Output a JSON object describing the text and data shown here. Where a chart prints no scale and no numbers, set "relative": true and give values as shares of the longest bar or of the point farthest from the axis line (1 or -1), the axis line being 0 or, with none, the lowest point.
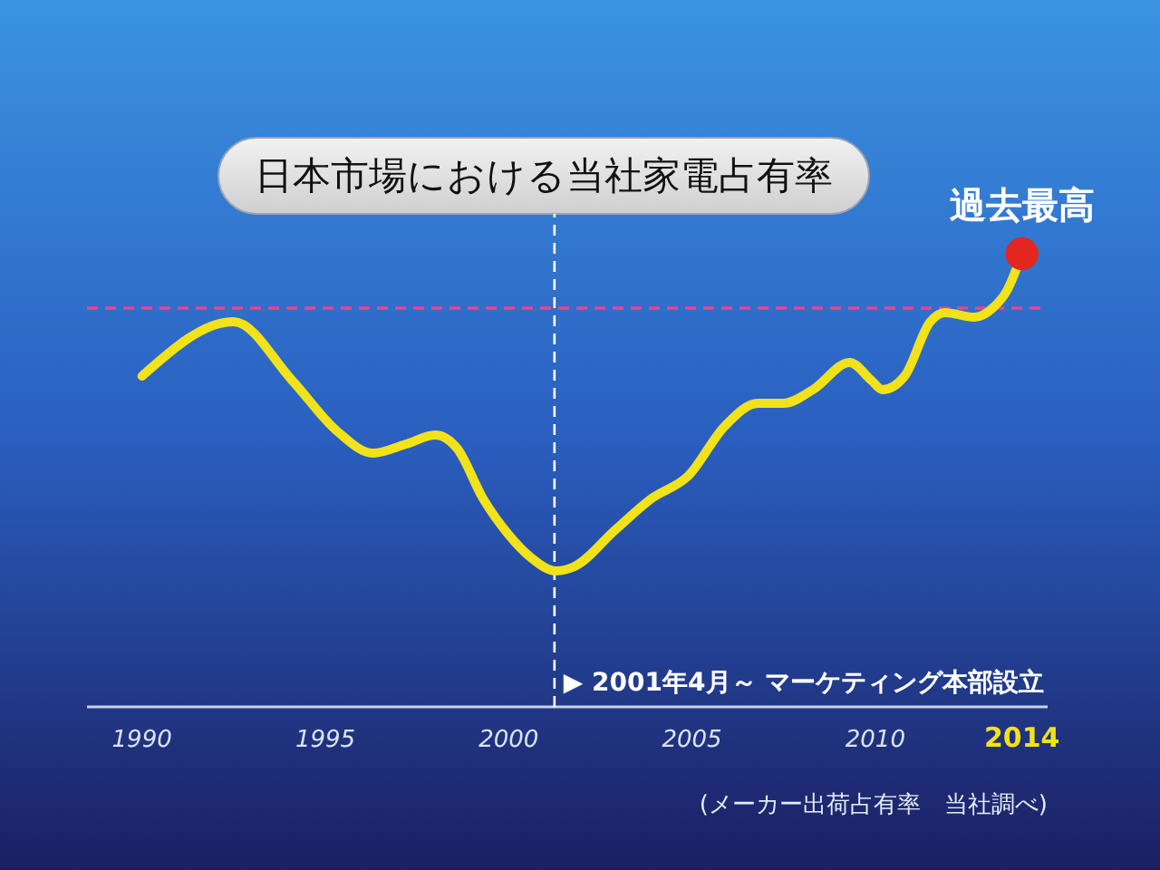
{
  "chart_data": {
    "type": "line",
    "title": "日本市場における当社家電占有率",
    "relative": true,
    "xlim": [
      1988.5,
      2014.7
    ],
    "xticks": [
      1990,
      1995,
      2000,
      2005,
      2010,
      2014
    ],
    "series": [
      {
        "color": "#f2e21a",
        "x": [
          1990,
          1992.5,
          1994.1,
          1995.3,
          1996.3,
          1997.2,
          1998,
          1998.6,
          1999.3,
          2000,
          2000.6,
          2001.3,
          2001.8,
          2002.9,
          2003.9,
          2004.9,
          2005.9,
          2006.8,
          2007.5,
          2008.3,
          2009.3,
          2009.9,
          2010.2,
          2010.8,
          2011.5,
          2011.9,
          2012.7,
          2013.2,
          2013.6,
          2014
        ],
        "values": [
          0.73,
          0.85,
          0.72,
          0.61,
          0.56,
          0.58,
          0.6,
          0.57,
          0.46,
          0.38,
          0.33,
          0.3,
          0.31,
          0.39,
          0.46,
          0.51,
          0.62,
          0.67,
          0.67,
          0.7,
          0.76,
          0.72,
          0.7,
          0.73,
          0.85,
          0.87,
          0.86,
          0.88,
          0.92,
          1
        ]
      },
      {
        "type": "scatter",
        "color": "#e3261f",
        "marker": "circle",
        "x": [
          2014
        ],
        "values": [
          1
        ]
      }
    ],
    "ref_lines": [
      {
        "axis": "x",
        "value": 2001.25,
        "label": "▶ 2001年4月～ マーケティング本部設立",
        "color": "#ffffff",
        "line_style": "dashed"
      },
      {
        "axis": "y",
        "value": 0.88,
        "color": "#e8468c",
        "line_style": "dashed"
      }
    ],
    "annotations": [
      {
        "text": "過去最高",
        "x": 2014,
        "y": 1
      },
      "(メーカー出荷占有率　当社調べ)"
    ]
  }
}
